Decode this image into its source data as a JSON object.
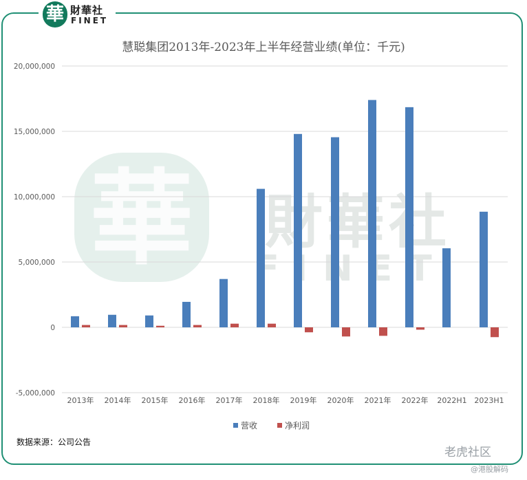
{
  "brand": {
    "badge_char": "華",
    "name_cn": "財華社",
    "name_en": "FINET",
    "watermark_char": "華",
    "watermark_cn": "財華社",
    "watermark_en": "FINET"
  },
  "footer": {
    "source": "数据来源：公司公告",
    "corner_brand": "老虎社区",
    "corner_sub": "@港股解码"
  },
  "colors": {
    "revenue": "#4a7ebb",
    "profit": "#c0504d",
    "frame": "#1f8f74",
    "watermark": "#cfe3dc"
  },
  "chart_data": {
    "type": "bar",
    "title": "慧聪集团2013年-2023年上半年经营业绩(单位：千元)",
    "categories": [
      "2013年",
      "2014年",
      "2015年",
      "2016年",
      "2017年",
      "2018年",
      "2019年",
      "2020年",
      "2021年",
      "2022年",
      "2022H1",
      "2023H1"
    ],
    "series": [
      {
        "name": "营收",
        "values": [
          850000,
          960000,
          910000,
          1950000,
          3700000,
          10600000,
          14800000,
          14550000,
          17400000,
          16850000,
          6050000,
          8850000
        ]
      },
      {
        "name": "净利润",
        "values": [
          180000,
          180000,
          120000,
          180000,
          280000,
          280000,
          -380000,
          -700000,
          -650000,
          -180000,
          0,
          -750000
        ]
      }
    ],
    "ylim": [
      -5000000,
      20000000
    ],
    "yticks": [
      -5000000,
      0,
      5000000,
      10000000,
      15000000,
      20000000
    ],
    "ytick_labels": [
      "-5,000,000",
      "0",
      "5,000,000",
      "10,000,000",
      "15,000,000",
      "20,000,000"
    ],
    "grid": true,
    "legend": "bottom-center",
    "xlabel": "",
    "ylabel": ""
  }
}
